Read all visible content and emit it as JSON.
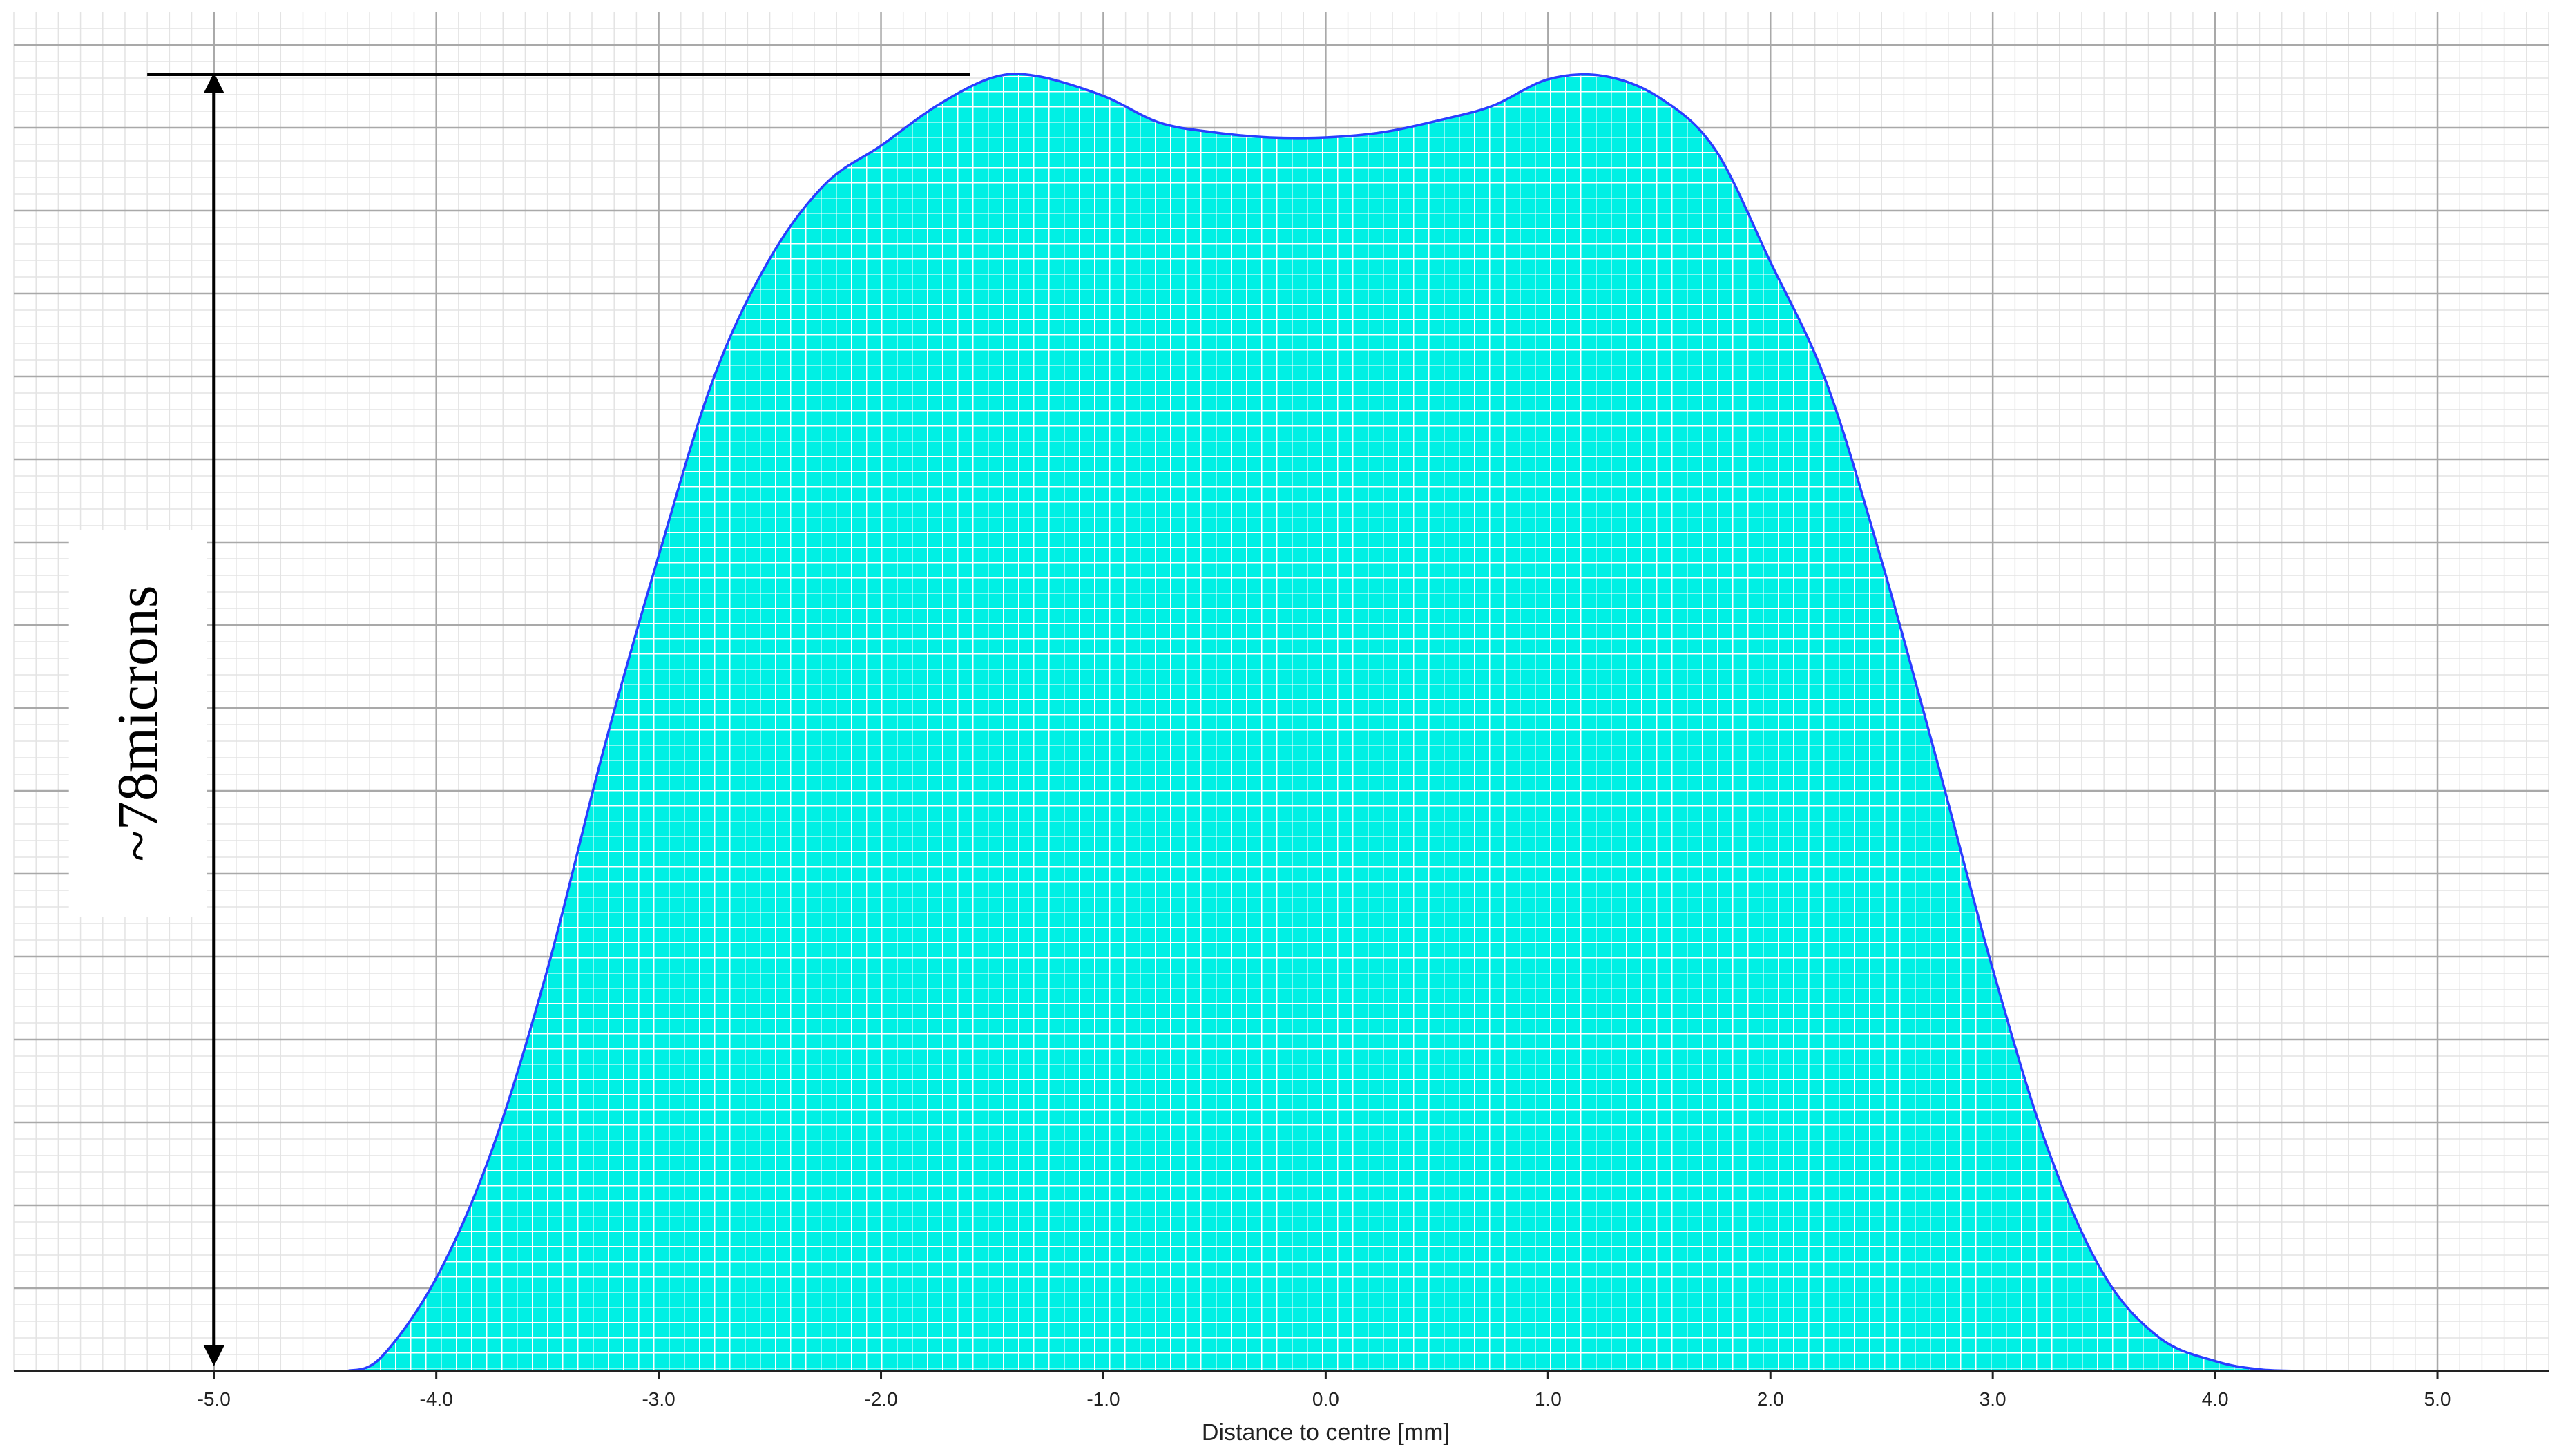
{
  "chart_data": {
    "type": "area",
    "title": "",
    "xlabel": "Distance to centre [mm]",
    "ylabel": "",
    "xlim": [
      -5.9,
      5.5
    ],
    "ylim": [
      0,
      78
    ],
    "grid": true,
    "x_ticks": [
      -5.0,
      -4.0,
      -3.0,
      -2.0,
      -1.0,
      0.0,
      1.0,
      2.0,
      3.0,
      4.0,
      5.0
    ],
    "x_tick_labels": [
      "-5.0",
      "-4.0",
      "-3.0",
      "-2.0",
      "-1.0",
      "0.0",
      "1.0",
      "2.0",
      "3.0",
      "4.0",
      "5.0"
    ],
    "series": [
      {
        "x": [
          -4.4,
          -4.25,
          -4.0,
          -3.75,
          -3.5,
          -3.25,
          -3.0,
          -2.75,
          -2.5,
          -2.25,
          -2.0,
          -1.75,
          -1.5,
          -1.3,
          -1.0,
          -0.75,
          -0.5,
          -0.25,
          0.0,
          0.25,
          0.5,
          0.75,
          1.0,
          1.25,
          1.5,
          1.75,
          2.0,
          2.25,
          2.5,
          2.75,
          3.0,
          3.25,
          3.5,
          3.75,
          4.0,
          4.2,
          4.4
        ],
        "y": [
          0,
          0.8,
          5.6,
          13.3,
          24.2,
          37.3,
          49.1,
          59.9,
          67.0,
          71.5,
          73.8,
          76.2,
          77.9,
          78.0,
          76.8,
          75.2,
          74.6,
          74.3,
          74.3,
          74.6,
          75.3,
          76.2,
          77.8,
          78.0,
          76.7,
          73.6,
          66.8,
          59.6,
          48.8,
          36.7,
          24.2,
          13.3,
          5.8,
          2.0,
          0.6,
          0.1,
          0
        ]
      }
    ],
    "colors": {
      "fill": "#00f0e4",
      "outline": "#2b3dff",
      "hatch": "#ffffff",
      "major_grid": "#a9a9a9",
      "minor_grid": "#e3e3e3",
      "axis": "#222222"
    },
    "annotation": {
      "label": "~78microns",
      "type": "vertical-double-arrow",
      "x": -5.0,
      "y_from": 0,
      "y_to": 78,
      "ref_line_x": [
        -5.3,
        -1.6
      ]
    }
  }
}
